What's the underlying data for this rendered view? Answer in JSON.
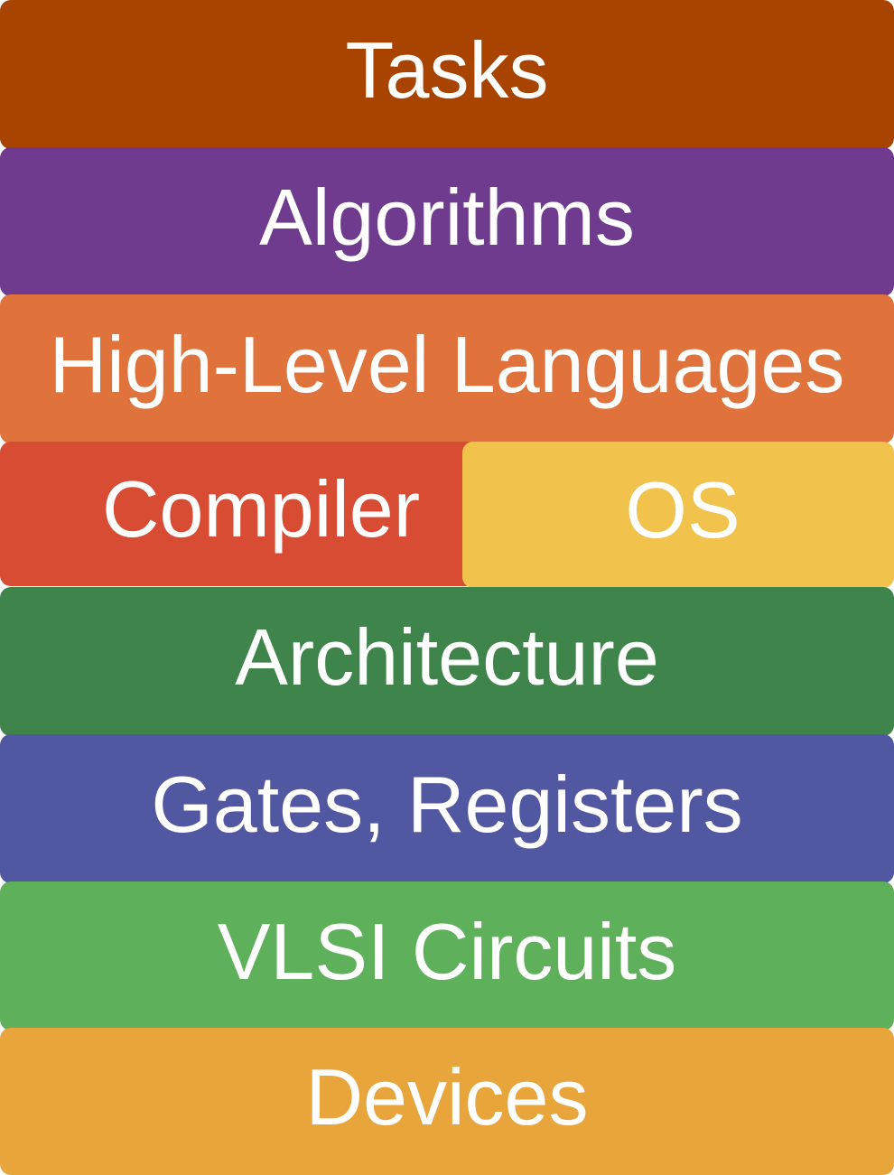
{
  "diagram": {
    "layers": [
      {
        "label": "Tasks",
        "color": "#a84300"
      },
      {
        "label": "Algorithms",
        "color": "#6e3b8e"
      },
      {
        "label": "High-Level Languages",
        "color": "#df733b"
      },
      {
        "label": "Compiler",
        "color": "#d84c34"
      },
      {
        "label": "OS",
        "color": "#f1c34c"
      },
      {
        "label": "Architecture",
        "color": "#3f854b"
      },
      {
        "label": "Gates, Registers",
        "color": "#5157a1"
      },
      {
        "label": "VLSI Circuits",
        "color": "#5fb05a"
      },
      {
        "label": "Devices",
        "color": "#e8a53c"
      }
    ]
  }
}
